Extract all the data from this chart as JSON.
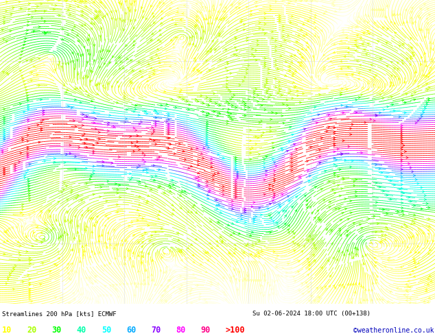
{
  "title_left": "Streamlines 200 hPa [kts] ECMWF",
  "title_right": "Su 02-06-2024 18:00 UTC (00+138)",
  "watermark": "©weatheronline.co.uk",
  "legend_values": [
    10,
    20,
    30,
    40,
    50,
    60,
    70,
    80,
    90
  ],
  "legend_label_gt": ">100",
  "legend_colors": [
    "#ffff00",
    "#aaff00",
    "#00ff00",
    "#00ffaa",
    "#00ffff",
    "#00aaff",
    "#8800ff",
    "#ff00ff",
    "#ff0088",
    "#ff0000"
  ],
  "bg_color": "#ffffff",
  "plot_bg": "#ffffff",
  "fig_width": 6.34,
  "fig_height": 4.9,
  "dpi": 100,
  "colormap_speeds": [
    0,
    10,
    20,
    30,
    40,
    50,
    60,
    70,
    80,
    90,
    100
  ],
  "colormap_hex": [
    "#ffffff",
    "#ffff00",
    "#aaff00",
    "#00ff00",
    "#00ffaa",
    "#00ffff",
    "#00aaff",
    "#8800ff",
    "#ff00ff",
    "#ff0088",
    "#ff0000"
  ]
}
